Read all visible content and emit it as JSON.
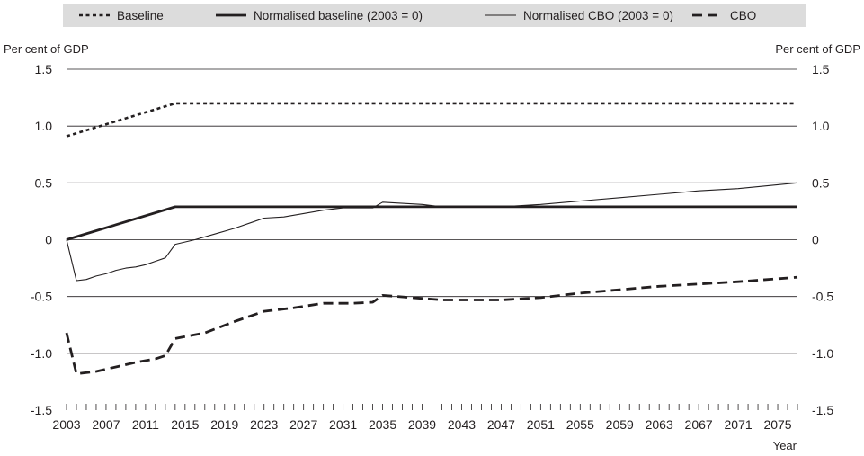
{
  "chart_data": {
    "type": "line",
    "title": "",
    "xlabel": "Year",
    "ylabel_left": "Per cent of GDP",
    "ylabel_right": "Per cent of GDP",
    "ylim": [
      -1.5,
      1.5
    ],
    "xlim": [
      2003,
      2077
    ],
    "y_ticks": [
      {
        "value": 1.5,
        "label": "1.5"
      },
      {
        "value": 1.0,
        "label": "1.0"
      },
      {
        "value": 0.5,
        "label": "0.5"
      },
      {
        "value": 0,
        "label": "0"
      },
      {
        "value": -0.5,
        "label": "-0.5"
      },
      {
        "value": -1.0,
        "label": "-1.0"
      },
      {
        "value": -1.5,
        "label": "-1.5"
      }
    ],
    "x_ticks": [
      "2003",
      "2007",
      "2011",
      "2015",
      "2019",
      "2023",
      "2027",
      "2031",
      "2035",
      "2039",
      "2043",
      "2047",
      "2051",
      "2055",
      "2059",
      "2063",
      "2067",
      "2071",
      "2075"
    ],
    "gridlines": true,
    "legend_position": "top",
    "series": [
      {
        "name": "Baseline",
        "style": "dotted",
        "x": [
          2003,
          2014,
          2077
        ],
        "y": [
          0.91,
          1.2,
          1.2
        ]
      },
      {
        "name": "Normalised baseline (2003 = 0)",
        "style": "solid-thick",
        "x": [
          2003,
          2014,
          2077
        ],
        "y": [
          0,
          0.29,
          0.29
        ]
      },
      {
        "name": "Normalised CBO (2003 = 0)",
        "style": "solid-thin",
        "x": [
          2003,
          2004,
          2005,
          2006,
          2007,
          2008,
          2009,
          2010,
          2011,
          2012,
          2013,
          2014,
          2016,
          2018,
          2020,
          2022,
          2023,
          2025,
          2027,
          2029,
          2031,
          2033,
          2034,
          2035,
          2037,
          2039,
          2041,
          2043,
          2045,
          2047,
          2051,
          2055,
          2059,
          2063,
          2067,
          2071,
          2077
        ],
        "y": [
          0,
          -0.36,
          -0.35,
          -0.32,
          -0.3,
          -0.27,
          -0.25,
          -0.24,
          -0.22,
          -0.19,
          -0.16,
          -0.04,
          0.0,
          0.05,
          0.1,
          0.16,
          0.19,
          0.2,
          0.23,
          0.26,
          0.28,
          0.28,
          0.28,
          0.33,
          0.32,
          0.31,
          0.29,
          0.29,
          0.29,
          0.29,
          0.31,
          0.34,
          0.37,
          0.4,
          0.43,
          0.45,
          0.5
        ]
      },
      {
        "name": "CBO",
        "style": "dashed",
        "x": [
          2003,
          2004,
          2006,
          2008,
          2010,
          2012,
          2013,
          2014,
          2017,
          2020,
          2023,
          2026,
          2029,
          2032,
          2034,
          2035,
          2038,
          2041,
          2044,
          2047,
          2051,
          2055,
          2059,
          2063,
          2067,
          2071,
          2077
        ],
        "y": [
          -0.82,
          -1.18,
          -1.16,
          -1.12,
          -1.08,
          -1.05,
          -1.02,
          -0.87,
          -0.82,
          -0.72,
          -0.63,
          -0.6,
          -0.56,
          -0.56,
          -0.55,
          -0.49,
          -0.51,
          -0.53,
          -0.53,
          -0.53,
          -0.51,
          -0.47,
          -0.44,
          -0.41,
          -0.39,
          -0.37,
          -0.33
        ]
      }
    ]
  }
}
